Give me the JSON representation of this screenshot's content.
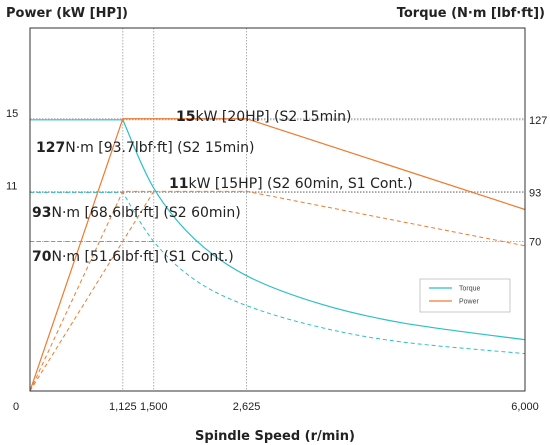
{
  "chart_data": {
    "type": "line",
    "left_axis_title": "Power (kW [HP])",
    "right_axis_title": "Torque (N·m [lbf·ft])",
    "xlabel": "Spindle Speed (r/min)",
    "xlim": [
      0,
      6000
    ],
    "x_ticks": [
      {
        "value": 0,
        "label": "0"
      },
      {
        "value": 1125,
        "label": "1,125"
      },
      {
        "value": 1500,
        "label": "1,500"
      },
      {
        "value": 2625,
        "label": "2,625"
      },
      {
        "value": 6000,
        "label": "6,000"
      }
    ],
    "left_ylim": [
      0,
      20
    ],
    "left_ticks": [
      {
        "value": 11,
        "label": "11"
      },
      {
        "value": 15,
        "label": "15"
      }
    ],
    "right_ylim": [
      0,
      170
    ],
    "right_ticks": [
      {
        "value": 70,
        "label": "70"
      },
      {
        "value": 93,
        "label": "93"
      },
      {
        "value": 127,
        "label": "127"
      }
    ],
    "series": [
      {
        "name": "Torque",
        "axis": "right",
        "color": "#2bbfcc",
        "dash": "solid",
        "x": [
          0,
          1125,
          1500,
          2000,
          2625,
          3500,
          4500,
          6000
        ],
        "y": [
          127,
          127,
          95,
          71,
          54,
          41,
          32,
          24
        ]
      },
      {
        "name": "",
        "axis": "right",
        "color": "#2bbfcc",
        "dash": "dashed",
        "x": [
          0,
          1125,
          1500,
          2000,
          2625,
          3500,
          4500,
          6000
        ],
        "y": [
          93,
          93,
          70,
          52,
          40,
          30,
          23,
          17.5
        ]
      },
      {
        "name": "",
        "axis": "right",
        "color": "#2bbfcc",
        "dash": "dashed",
        "x": [
          0,
          1500
        ],
        "y": [
          70,
          70
        ]
      },
      {
        "name": "Power",
        "axis": "left",
        "color": "#f07a2e",
        "dash": "solid",
        "x": [
          0,
          1125,
          2625,
          6000
        ],
        "y": [
          0,
          15,
          15,
          10
        ]
      },
      {
        "name": "",
        "axis": "left",
        "color": "#f07a2e",
        "dash": "dashed",
        "x": [
          0,
          1125,
          2625,
          6000
        ],
        "y": [
          0,
          11,
          11,
          8
        ]
      },
      {
        "name": "",
        "axis": "left",
        "color": "#f07a2e",
        "dash": "dashed",
        "x": [
          0,
          1500
        ],
        "y": [
          0,
          11
        ]
      }
    ],
    "reference_lines": [
      {
        "axis": "x",
        "value": 1125
      },
      {
        "axis": "x",
        "value": 1500
      },
      {
        "axis": "x",
        "value": 2625
      },
      {
        "axis": "left",
        "value": 15
      },
      {
        "axis": "left",
        "value": 11
      },
      {
        "axis": "right",
        "value": 127
      },
      {
        "axis": "right",
        "value": 93
      },
      {
        "axis": "right",
        "value": 70
      }
    ],
    "annotations": [
      {
        "bold": "15",
        "text": "kW [20HP] (S2 15min)"
      },
      {
        "bold": "127",
        "text": "N·m [93.7lbf·ft] (S2 15min)"
      },
      {
        "bold": "11",
        "text": "kW [15HP]  (S2 60min, S1 Cont.)"
      },
      {
        "bold": "93",
        "text": "N·m [68.6lbf·ft] (S2 60min)"
      },
      {
        "bold": "70",
        "text": "N·m [51.6lbf·ft] (S1 Cont.)"
      }
    ],
    "legend": {
      "position": "inside-right",
      "entries": [
        {
          "label": "Torque",
          "color": "#2bbfcc"
        },
        {
          "label": "Power",
          "color": "#f07a2e"
        }
      ]
    }
  }
}
